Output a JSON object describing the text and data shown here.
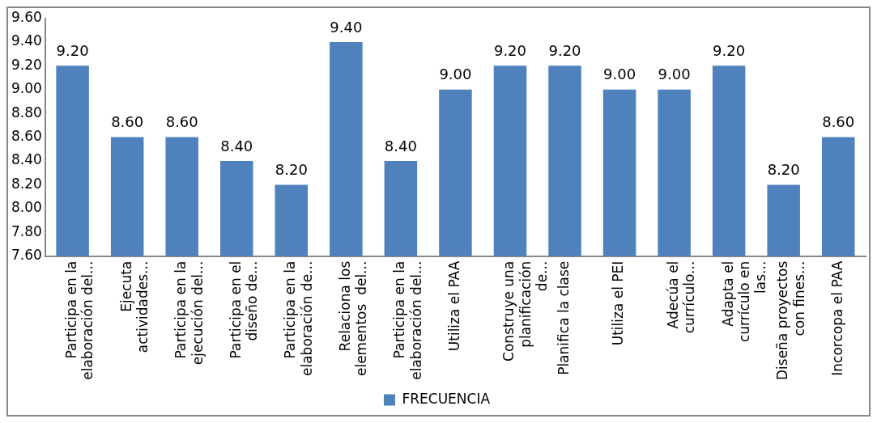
{
  "chart_data": {
    "type": "bar",
    "categories": [
      "Participa en la elaboración del...",
      "Ejecuta actividades...",
      "Participa en la ejecución del...",
      "Participa en el diseño de...",
      "Participa en la elaboración de...",
      "Relaciona los elementos  del...",
      "Participa en la elaboración del...",
      "Utiliza el PAA",
      "Construye una planificación de...",
      "Planifica la clase",
      "Utiliza el PEI",
      "Adecúa el currículo...",
      "Adapta el currículo en las...",
      "Diseña proyectos con fines...",
      "Incorcopa el PAA"
    ],
    "series": [
      {
        "name": "FRECUENCIA",
        "color": "#4f81bd",
        "values": [
          9.2,
          8.6,
          8.6,
          8.4,
          8.2,
          9.4,
          8.4,
          9.0,
          9.2,
          9.2,
          9.0,
          9.0,
          9.2,
          8.2,
          8.6
        ],
        "value_labels": [
          "9.20",
          "8.60",
          "8.60",
          "8.40",
          "8.20",
          "9.40",
          "8.40",
          "9.00",
          "9.20",
          "9.20",
          "9.00",
          "9.00",
          "9.20",
          "8.20",
          "8.60"
        ]
      }
    ],
    "ylim": [
      7.6,
      9.6
    ],
    "yticks": [
      {
        "value": 7.6,
        "label": "7.60"
      },
      {
        "value": 7.8,
        "label": "7.80"
      },
      {
        "value": 8.0,
        "label": "8.00"
      },
      {
        "value": 8.2,
        "label": "8.20"
      },
      {
        "value": 8.4,
        "label": "8.40"
      },
      {
        "value": 8.6,
        "label": "8.60"
      },
      {
        "value": 8.8,
        "label": "8.80"
      },
      {
        "value": 9.0,
        "label": "9.00"
      },
      {
        "value": 9.2,
        "label": "9.20"
      },
      {
        "value": 9.4,
        "label": "9.40"
      },
      {
        "value": 9.6,
        "label": "9.60"
      }
    ],
    "grid": false,
    "legend": "bottom"
  }
}
